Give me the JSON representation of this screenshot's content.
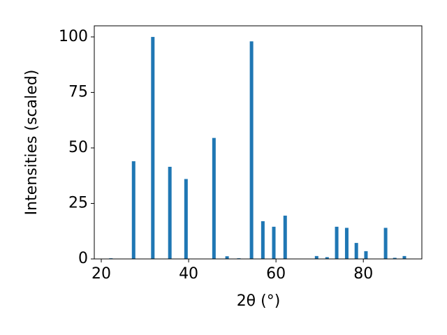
{
  "chart_data": {
    "type": "bar",
    "x_label": "2θ (°)",
    "y_label": "Intensities (scaled)",
    "x": [
      22.2,
      27.4,
      31.8,
      35.7,
      39.4,
      45.8,
      48.8,
      51.5,
      54.4,
      57.0,
      59.5,
      62.1,
      69.3,
      71.7,
      73.9,
      76.2,
      78.4,
      80.6,
      85.1,
      87.2,
      89.4
    ],
    "values": [
      0.3,
      44,
      100,
      41.5,
      36,
      54.5,
      1.2,
      0.3,
      98,
      17,
      14.5,
      19.5,
      1.3,
      0.8,
      14.5,
      14,
      7.2,
      3.5,
      14,
      0.5,
      1.3
    ],
    "color": "#1f77b4",
    "xlim": [
      18.4,
      93.4
    ],
    "xticks": [
      20,
      40,
      60,
      80
    ],
    "ylim": [
      0,
      105
    ],
    "yticks": [
      0,
      25,
      50,
      75,
      100
    ],
    "grid": false
  }
}
